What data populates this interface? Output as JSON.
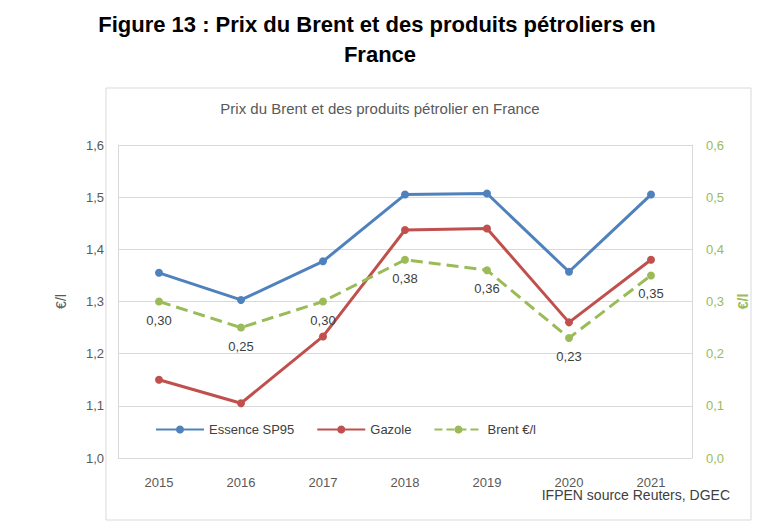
{
  "chart_data": {
    "type": "line",
    "figure_title": "Figure 13 : Prix du Brent et des produits pétroliers en France",
    "title": "Prix du Brent et des produits pétrolier en France",
    "source": "IFPEN source Reuters, DGEC",
    "y_label": "€/l",
    "y2_label": "€/l",
    "categories": [
      "2015",
      "2016",
      "2017",
      "2018",
      "2019",
      "2020",
      "2021"
    ],
    "series": [
      {
        "name": "Essence SP95",
        "color": "#4f81bd",
        "marker": "circle",
        "line_style": "solid",
        "values": [
          1.355,
          1.303,
          1.377,
          1.505,
          1.507,
          1.357,
          1.505
        ]
      },
      {
        "name": "Gazole",
        "color": "#c0504d",
        "marker": "circle",
        "line_style": "solid",
        "values": [
          1.15,
          1.105,
          1.233,
          1.437,
          1.44,
          1.26,
          1.38
        ]
      },
      {
        "name": "Brent €/l",
        "color": "#9bbb59",
        "marker": "circle",
        "line_style": "dashed",
        "axis": "y2",
        "data_labels": true,
        "values": [
          0.3,
          0.25,
          0.3,
          0.38,
          0.36,
          0.23,
          0.35
        ],
        "value_labels": [
          "0,30",
          "0,25",
          "0,30",
          "0,38",
          "0,36",
          "0,23",
          "0,35"
        ]
      }
    ],
    "ylim": [
      1.0,
      1.6
    ],
    "yticks": [
      {
        "value": 1.0,
        "label": "1,0"
      },
      {
        "value": 1.1,
        "label": "1,1"
      },
      {
        "value": 1.2,
        "label": "1,2"
      },
      {
        "value": 1.3,
        "label": "1,3"
      },
      {
        "value": 1.4,
        "label": "1,4"
      },
      {
        "value": 1.5,
        "label": "1,5"
      },
      {
        "value": 1.6,
        "label": "1,6"
      }
    ],
    "y2lim": [
      0.0,
      0.6
    ],
    "y2ticks": [
      {
        "value": 0.0,
        "label": "0,0"
      },
      {
        "value": 0.1,
        "label": "0,1"
      },
      {
        "value": 0.2,
        "label": "0,2"
      },
      {
        "value": 0.3,
        "label": "0,3"
      },
      {
        "value": 0.4,
        "label": "0,4"
      },
      {
        "value": 0.5,
        "label": "0,5"
      },
      {
        "value": 0.6,
        "label": "0,6"
      }
    ],
    "grid": true,
    "legend": "bottom"
  }
}
